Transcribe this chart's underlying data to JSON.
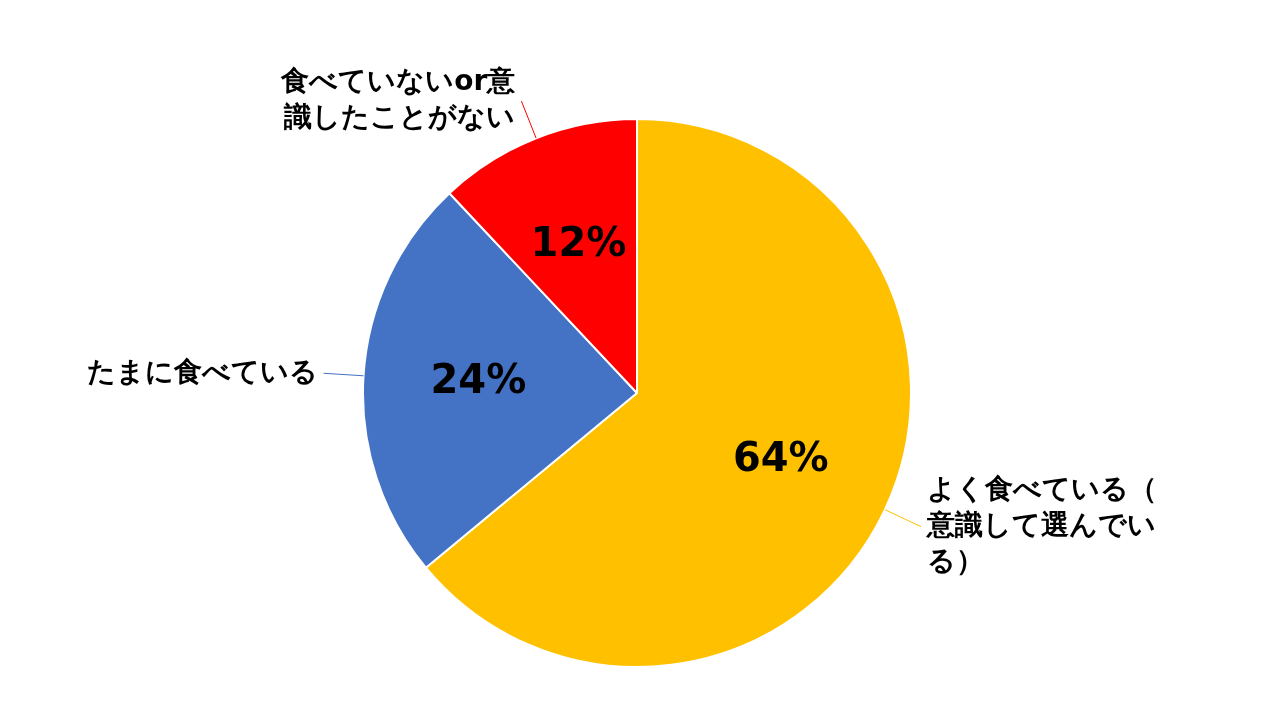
{
  "chart_data": {
    "type": "pie",
    "categories": [
      "よく食べている（意識して選んでいる）",
      "たまに食べている",
      "食べていないor意識したことがない"
    ],
    "values": [
      64,
      24,
      12
    ],
    "colors": [
      "#ffc000",
      "#4472c4",
      "#ff0000"
    ],
    "value_labels": [
      "64%",
      "24%",
      "12%"
    ],
    "legend": false
  }
}
